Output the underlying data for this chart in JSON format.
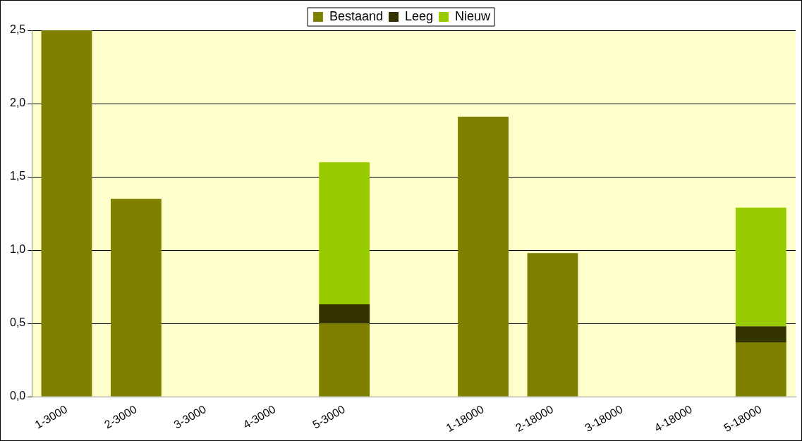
{
  "chart_data": {
    "type": "bar",
    "stacked": true,
    "categories": [
      "1-3000",
      "2-3000",
      "3-3000",
      "4-3000",
      "5-3000",
      null,
      "1-18000",
      "2-18000",
      "3-18000",
      "4-18000",
      "5-18000"
    ],
    "series": [
      {
        "name": "Bestaand",
        "color": "#808000",
        "values": [
          2.5,
          1.35,
          null,
          null,
          0.5,
          null,
          1.91,
          0.98,
          null,
          null,
          0.37
        ]
      },
      {
        "name": "Leeg",
        "color": "#333300",
        "values": [
          null,
          null,
          null,
          null,
          0.13,
          null,
          null,
          null,
          null,
          null,
          0.11
        ]
      },
      {
        "name": "Nieuw",
        "color": "#99cc00",
        "values": [
          null,
          null,
          null,
          null,
          0.97,
          null,
          null,
          null,
          null,
          null,
          0.81
        ]
      }
    ],
    "ylim": [
      0,
      2.5
    ],
    "yticks": [
      {
        "value": 0,
        "label": "0,0"
      },
      {
        "value": 0.5,
        "label": "0,5"
      },
      {
        "value": 1,
        "label": "1,0"
      },
      {
        "value": 1.5,
        "label": "1,5"
      },
      {
        "value": 2,
        "label": "2,0"
      },
      {
        "value": 2.5,
        "label": "2,5"
      }
    ],
    "grid": "y",
    "legend": "top"
  }
}
